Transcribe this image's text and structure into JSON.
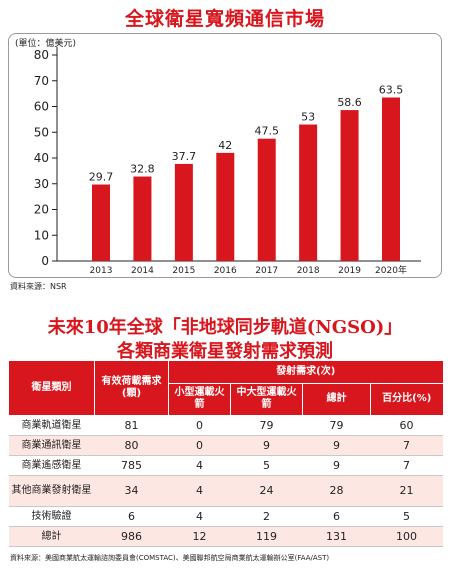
{
  "page": {
    "title": "全球衛星寬頻通信市場",
    "source_chart": "資料來源：NSR",
    "table_title_line1": "未來10年全球「非地球同步軌道(NGSO)」",
    "table_title_line2": "各類商業衛星發射需求預測",
    "source_table": "資料來源：美國商業航太運輸諮詢委員會(COMSTAC)、美國聯邦航空局商業航太運輸辦公室(FAA/AST)"
  },
  "colors": {
    "accent": "#d7161d",
    "row_alt": "#fde7e3"
  },
  "chart_data": {
    "type": "bar",
    "title": "全球衛星寬頻通信市場",
    "unit_label": "(單位：億美元)",
    "categories": [
      "2013",
      "2014",
      "2015",
      "2016",
      "2017",
      "2018",
      "2019",
      "2020年"
    ],
    "values": [
      29.7,
      32.8,
      37.7,
      42,
      47.5,
      53,
      58.6,
      63.5
    ],
    "value_labels": [
      "29.7",
      "32.8",
      "37.7",
      "42",
      "47.5",
      "53",
      "58.6",
      "63.5"
    ],
    "ylim": [
      0,
      80
    ],
    "yticks": [
      0,
      10,
      20,
      30,
      40,
      50,
      60,
      70,
      80
    ],
    "grid": false,
    "color": "#d7161d"
  },
  "table": {
    "headers": {
      "category": "衛星類別",
      "payload": "有效荷載需求(顆)",
      "launch_group": "發射需求(次)",
      "small": "小型運載火箭",
      "medium": "中大型運載火箭",
      "total": "總計",
      "percent": "百分比(%)"
    },
    "rows": [
      {
        "category": "商業軌道衛星",
        "payload": "81",
        "small": "0",
        "medium": "79",
        "total": "79",
        "percent": "60"
      },
      {
        "category": "商業通訊衛星",
        "payload": "80",
        "small": "0",
        "medium": "9",
        "total": "9",
        "percent": "7"
      },
      {
        "category": "商業遙感衛星",
        "payload": "785",
        "small": "4",
        "medium": "5",
        "total": "9",
        "percent": "7"
      },
      {
        "category": "其他商業發射衛星",
        "payload": "34",
        "small": "4",
        "medium": "24",
        "total": "28",
        "percent": "21"
      },
      {
        "category": "技術驗證",
        "payload": "6",
        "small": "4",
        "medium": "2",
        "total": "6",
        "percent": "5"
      },
      {
        "category": "總計",
        "payload": "986",
        "small": "12",
        "medium": "119",
        "total": "131",
        "percent": "100"
      }
    ]
  }
}
